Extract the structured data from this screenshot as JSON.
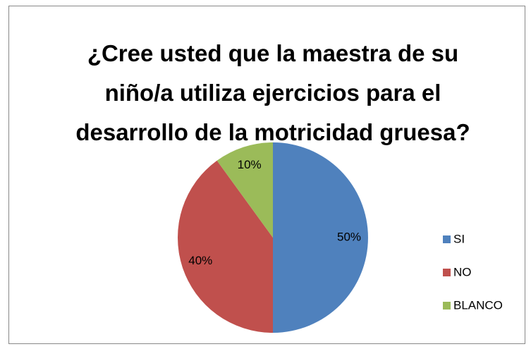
{
  "chart_data": {
    "type": "pie",
    "title": "¿Cree usted que la maestra de su niño/a utiliza ejercicios para el desarrollo de la motricidad gruesa?",
    "categories": [
      "SI",
      "NO",
      "BLANCO"
    ],
    "values": [
      50,
      40,
      10
    ],
    "value_labels": [
      "50%",
      "40%",
      "10%"
    ],
    "colors": [
      "#4f81bd",
      "#c0504d",
      "#9bbb59"
    ],
    "legend": "right"
  }
}
